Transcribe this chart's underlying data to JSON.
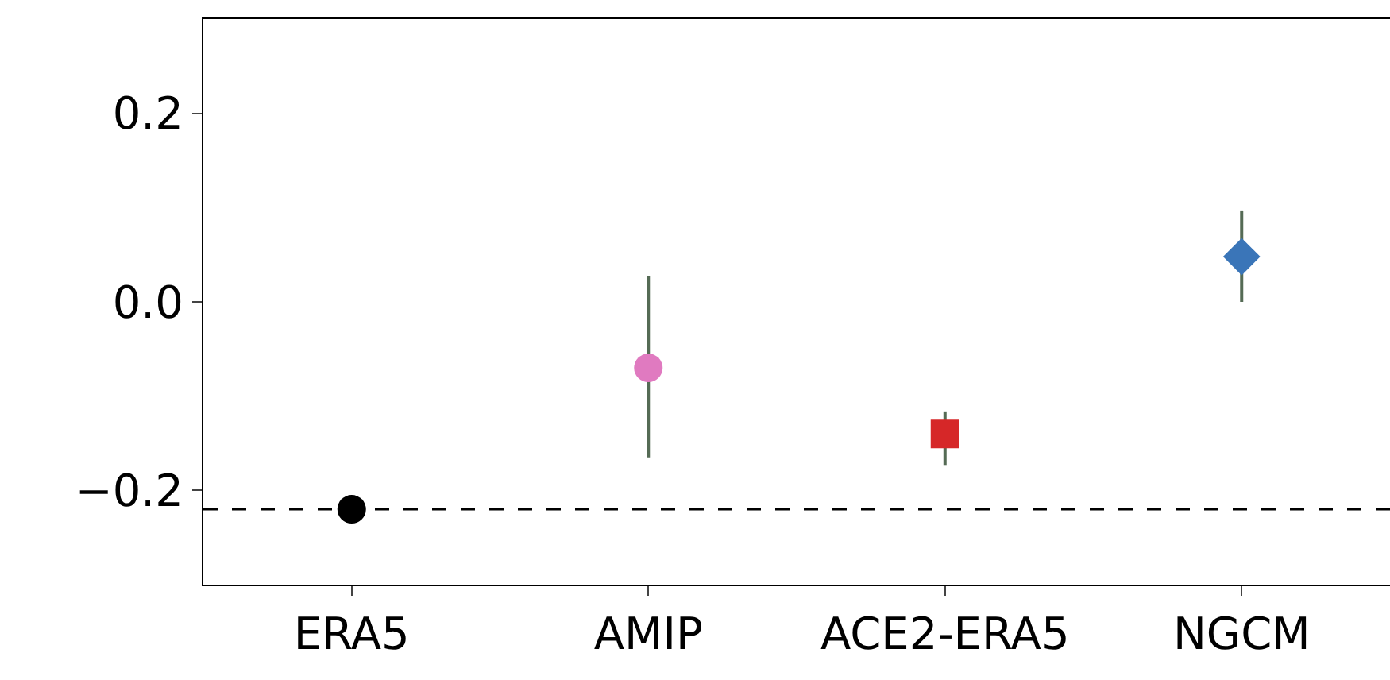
{
  "chart_data": {
    "type": "scatter",
    "categories": [
      "ERA5",
      "AMIP",
      "ACE2-ERA5",
      "NGCM"
    ],
    "series": [
      {
        "color": "#000000",
        "marker": "circle",
        "values": [
          -0.22,
          null,
          null,
          null
        ],
        "errors": [
          null,
          null,
          null,
          null
        ]
      },
      {
        "color": "#e07ac0",
        "marker": "circle",
        "values": [
          null,
          -0.07,
          null,
          null
        ],
        "errors": [
          null,
          [
            -0.165,
            0.027
          ],
          null,
          null
        ]
      },
      {
        "color": "#d62728",
        "marker": "square",
        "values": [
          null,
          null,
          -0.14,
          null
        ],
        "errors": [
          null,
          null,
          [
            -0.173,
            -0.117
          ],
          null
        ]
      },
      {
        "color": "#3a75b8",
        "marker": "diamond",
        "values": [
          null,
          null,
          null,
          0.048
        ],
        "errors": [
          null,
          null,
          null,
          [
            0.0,
            0.097
          ]
        ]
      }
    ],
    "ylim": [
      -0.3,
      0.3
    ],
    "yticks": [
      {
        "value": -0.2,
        "label": "−0.2"
      },
      {
        "value": 0,
        "label": "0.0"
      },
      {
        "value": 0.2,
        "label": "0.2"
      }
    ],
    "ref_lines": [
      {
        "axis": "y",
        "value": -0.22,
        "color": "#000000",
        "line_style": "dashed"
      }
    ],
    "grid": false
  }
}
